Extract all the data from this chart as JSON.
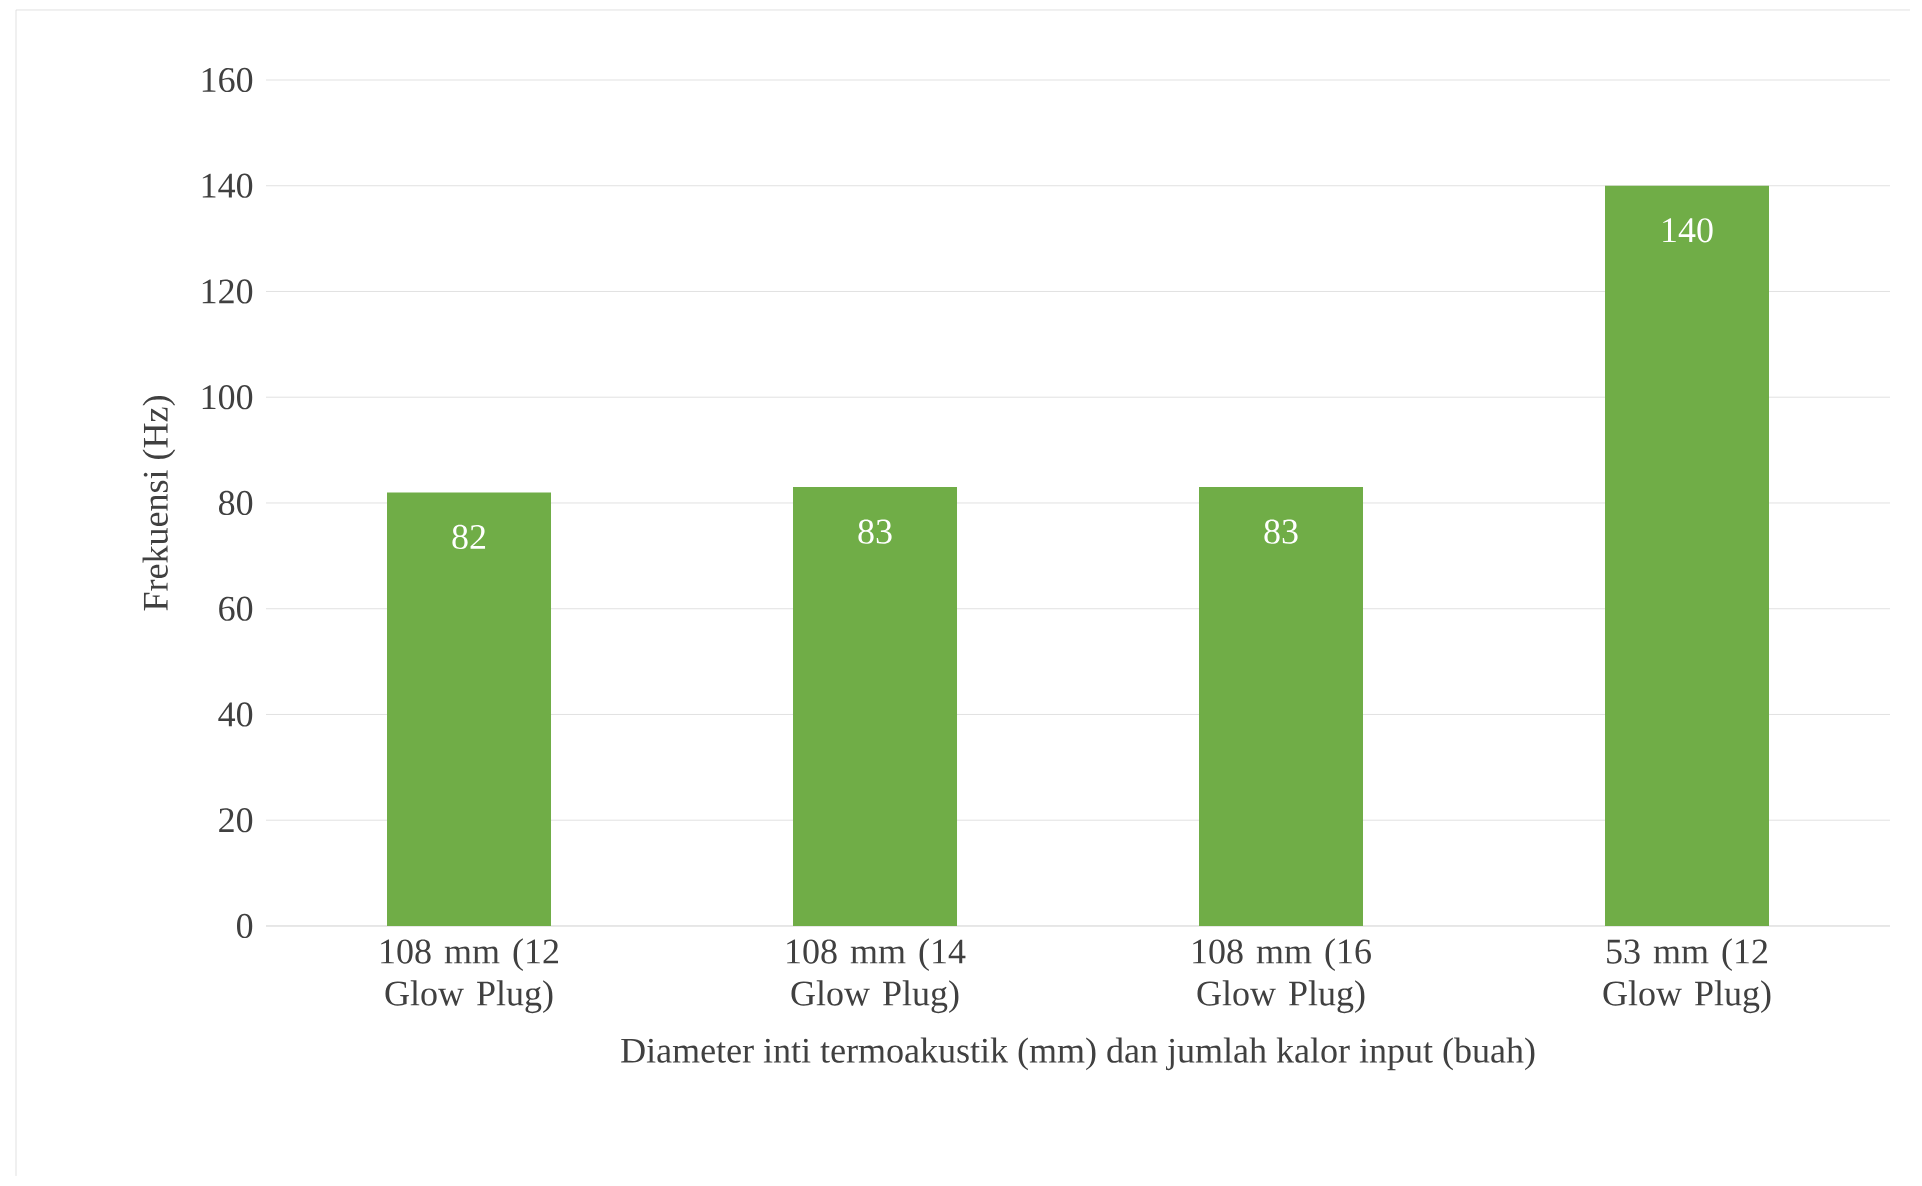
{
  "chart_data": {
    "type": "bar",
    "xlabel": "Diameter inti termoakustik (mm) dan jumlah kalor input (buah)",
    "ylabel": "Frekuensi (Hz)",
    "categories": [
      "108 mm (12 Glow Plug)",
      "108 mm (14 Glow Plug)",
      "108 mm (16 Glow Plug)",
      "53 mm (12 Glow Plug)"
    ],
    "values": [
      82,
      83,
      83,
      140
    ],
    "color": "#70ad47",
    "ylim": [
      0,
      160
    ],
    "yticks": [
      0,
      20,
      40,
      60,
      80,
      100,
      120,
      140,
      160
    ],
    "grid": "y",
    "data_labels": true
  }
}
